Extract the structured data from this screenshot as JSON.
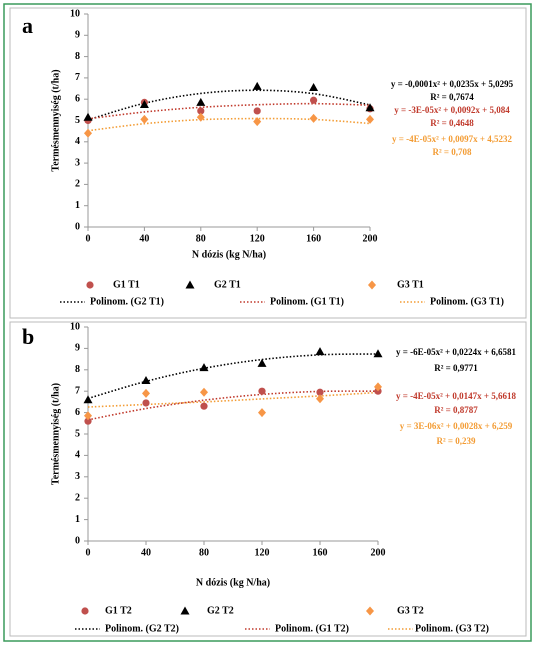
{
  "chart_data": [
    {
      "type": "scatter",
      "panel_label": "a",
      "ylabel": "Termésmennyiség (t/ha)",
      "xlabel": "N dózis (kg N/ha)",
      "x": [
        0,
        40,
        80,
        120,
        160,
        200
      ],
      "xlim": [
        0,
        200
      ],
      "xticks": [
        0,
        40,
        80,
        120,
        160,
        200
      ],
      "ylim": [
        0,
        10
      ],
      "yticks": [
        0,
        1,
        2,
        3,
        4,
        5,
        6,
        7,
        8,
        9,
        10
      ],
      "series": [
        {
          "name": "G1 T1",
          "color": "#c0504d",
          "marker": "circle",
          "values": [
            5.0,
            5.85,
            5.45,
            5.45,
            5.95,
            5.55
          ]
        },
        {
          "name": "G2 T1",
          "color": "#000000",
          "marker": "triangle",
          "values": [
            5.15,
            5.75,
            5.85,
            6.6,
            6.55,
            5.6
          ]
        },
        {
          "name": "G3 T1",
          "color": "#f79646",
          "marker": "diamond",
          "values": [
            4.4,
            5.05,
            5.15,
            4.95,
            5.1,
            5.05
          ]
        }
      ],
      "trendlines": [
        {
          "name": "Polinom. (G2 T1)",
          "color": "#000000",
          "values": [
            5.03,
            5.81,
            6.27,
            6.42,
            6.26,
            5.73
          ],
          "equation": "y = -0,0001x² + 0,0235x + 5,0295",
          "r_squared": "R² = 0,7674"
        },
        {
          "name": "Polinom. (G1 T1)",
          "color": "#c0392b",
          "values": [
            5.08,
            5.4,
            5.62,
            5.74,
            5.79,
            5.72
          ],
          "equation": "y = -3E-05x² + 0,0092x + 5,084",
          "r_squared": "R² = 0,4648"
        },
        {
          "name": "Polinom. (G3 T1)",
          "color": "#f39c34",
          "values": [
            4.52,
            4.85,
            5.04,
            5.09,
            5.05,
            4.86
          ],
          "equation": "y = -4E-05x² + 0,0097x + 4,5232",
          "r_squared": "R² = 0,708"
        }
      ]
    },
    {
      "type": "scatter",
      "panel_label": "b",
      "ylabel": "Termésmennyiség (t/ha)",
      "xlabel": "N dózis (kg N/ha)",
      "x": [
        0,
        40,
        80,
        120,
        160,
        200
      ],
      "xlim": [
        0,
        200
      ],
      "xticks": [
        0,
        40,
        80,
        120,
        160,
        200
      ],
      "ylim": [
        0,
        10
      ],
      "yticks": [
        0,
        1,
        2,
        3,
        4,
        5,
        6,
        7,
        8,
        9,
        10
      ],
      "series": [
        {
          "name": "G1 T2",
          "color": "#c0504d",
          "marker": "circle",
          "values": [
            5.6,
            6.45,
            6.3,
            7.0,
            6.95,
            7.0
          ]
        },
        {
          "name": "G2 T2",
          "color": "#000000",
          "marker": "triangle",
          "values": [
            6.6,
            7.5,
            8.1,
            8.3,
            8.85,
            8.75
          ]
        },
        {
          "name": "G3 T2",
          "color": "#f79646",
          "marker": "diamond",
          "values": [
            5.85,
            6.9,
            6.95,
            6.0,
            6.65,
            7.2
          ]
        }
      ],
      "trendlines": [
        {
          "name": "Polinom. (G2 T2)",
          "color": "#000000",
          "values": [
            6.66,
            7.46,
            8.07,
            8.48,
            8.7,
            8.74
          ],
          "equation": "y = -6E-05x² + 0,0224x + 6,6581",
          "r_squared": "R² = 0,9771"
        },
        {
          "name": "Polinom. (G1 T2)",
          "color": "#c0392b",
          "values": [
            5.66,
            6.19,
            6.58,
            6.85,
            6.99,
            7.0
          ],
          "equation": "y = -4E-05x² + 0,0147x + 5,6618",
          "r_squared": "R² = 0,8787"
        },
        {
          "name": "Polinom. (G3 T2)",
          "color": "#f39c34",
          "values": [
            6.26,
            6.38,
            6.5,
            6.64,
            6.78,
            6.94
          ],
          "equation": "y = 3E-06x² + 0,0028x + 6,259",
          "r_squared": "R² = 0,239"
        }
      ]
    }
  ]
}
